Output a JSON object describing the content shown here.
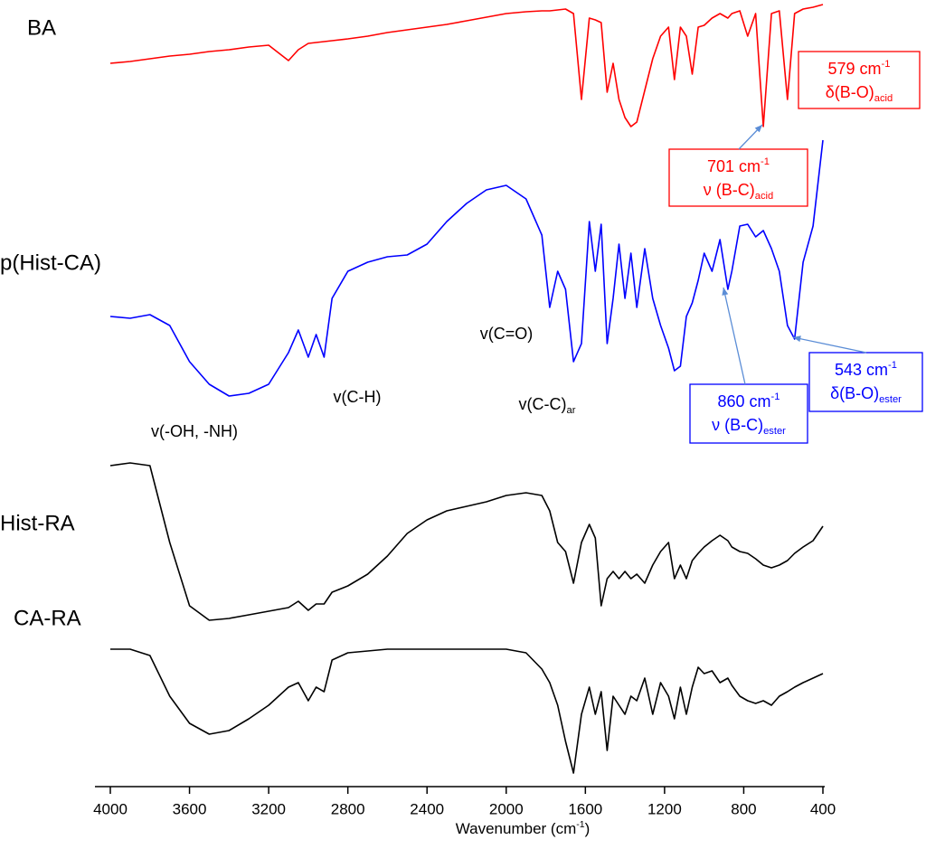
{
  "chart_data": {
    "type": "line",
    "x_label": {
      "text": "Wavenumber (cm",
      "sup": "-1",
      "after": ")"
    },
    "xlim": [
      4000,
      400
    ],
    "xticks": [
      4000,
      3600,
      3200,
      2800,
      2400,
      2000,
      1600,
      1200,
      800,
      400
    ],
    "ylim": [
      0,
      865
    ],
    "x": [
      4000,
      3900,
      3800,
      3700,
      3600,
      3500,
      3400,
      3300,
      3200,
      3100,
      3050,
      3000,
      2960,
      2920,
      2880,
      2800,
      2700,
      2600,
      2500,
      2400,
      2300,
      2200,
      2100,
      2000,
      1900,
      1820,
      1780,
      1740,
      1700,
      1660,
      1620,
      1580,
      1550,
      1520,
      1490,
      1460,
      1430,
      1400,
      1370,
      1340,
      1300,
      1260,
      1220,
      1180,
      1150,
      1120,
      1090,
      1060,
      1030,
      1000,
      960,
      920,
      880,
      860,
      820,
      780,
      740,
      701,
      660,
      620,
      579,
      543,
      500,
      450,
      400
    ],
    "series": [
      {
        "name": "BA",
        "color": "#ff0000",
        "values": [
          800,
          802,
          805,
          808,
          810,
          813,
          815,
          818,
          820,
          803,
          815,
          822,
          823,
          824,
          825,
          827,
          830,
          834,
          837,
          840,
          843,
          847,
          851,
          855,
          857,
          858,
          858,
          859,
          860,
          855,
          760,
          850,
          848,
          845,
          768,
          800,
          760,
          740,
          730,
          735,
          770,
          805,
          830,
          840,
          782,
          840,
          830,
          788,
          840,
          842,
          850,
          855,
          850,
          855,
          858,
          830,
          855,
          730,
          855,
          858,
          760,
          855,
          860,
          862,
          865
        ]
      },
      {
        "name": "p(Hist-CA)",
        "color": "#0000ff",
        "values": [
          520,
          518,
          522,
          510,
          470,
          445,
          432,
          435,
          445,
          480,
          505,
          475,
          500,
          475,
          540,
          570,
          580,
          586,
          588,
          600,
          625,
          645,
          660,
          665,
          650,
          610,
          530,
          570,
          550,
          470,
          490,
          625,
          570,
          622,
          490,
          540,
          600,
          540,
          590,
          530,
          595,
          540,
          510,
          485,
          460,
          465,
          520,
          535,
          560,
          590,
          570,
          605,
          550,
          570,
          620,
          622,
          608,
          615,
          595,
          570,
          510,
          495,
          580,
          620,
          715
        ]
      },
      {
        "name": "Hist-RA",
        "color": "#000000",
        "values": [
          355,
          358,
          355,
          270,
          200,
          184,
          186,
          190,
          194,
          198,
          205,
          195,
          202,
          202,
          215,
          222,
          235,
          255,
          280,
          295,
          305,
          310,
          315,
          322,
          325,
          322,
          305,
          270,
          260,
          225,
          270,
          290,
          275,
          200,
          230,
          238,
          230,
          238,
          230,
          235,
          225,
          245,
          260,
          270,
          230,
          245,
          230,
          250,
          258,
          265,
          272,
          278,
          272,
          265,
          260,
          258,
          252,
          245,
          242,
          245,
          250,
          258,
          265,
          272,
          288
        ]
      },
      {
        "name": "CA-RA",
        "color": "#000000",
        "values": [
          152,
          152,
          145,
          100,
          70,
          58,
          62,
          75,
          90,
          110,
          115,
          95,
          110,
          105,
          140,
          148,
          150,
          152,
          152,
          152,
          152,
          152,
          152,
          152,
          148,
          130,
          115,
          90,
          50,
          15,
          80,
          110,
          80,
          105,
          40,
          100,
          90,
          80,
          100,
          95,
          120,
          80,
          115,
          100,
          75,
          110,
          80,
          110,
          132,
          125,
          128,
          115,
          120,
          112,
          100,
          95,
          92,
          95,
          90,
          100,
          105,
          110,
          115,
          120,
          125
        ]
      }
    ],
    "annotations": [
      {
        "text": "v(-OH, -NH)"
      },
      {
        "text": "v(C-H)"
      },
      {
        "text": "v(C=O)"
      },
      {
        "text": "v(C-C)",
        "sub": "ar"
      }
    ],
    "callouts": [
      {
        "color": "#ff0000",
        "lines": [
          {
            "text": "579 cm",
            "sup": "-1"
          },
          {
            "text": "δ(B-O)",
            "sub": "acid"
          }
        ]
      },
      {
        "color": "#ff0000",
        "lines": [
          {
            "text": "701 cm",
            "sup": "-1"
          },
          {
            "text": "ν (B-C)",
            "sub": "acid"
          }
        ]
      },
      {
        "color": "#0000ff",
        "lines": [
          {
            "text": "860 cm",
            "sup": "-1"
          },
          {
            "text": "ν (B-C)",
            "sub": "ester"
          }
        ]
      },
      {
        "color": "#0000ff",
        "lines": [
          {
            "text": "543 cm",
            "sup": "-1"
          },
          {
            "text": "δ(B-O)",
            "sub": "ester"
          }
        ]
      }
    ]
  }
}
